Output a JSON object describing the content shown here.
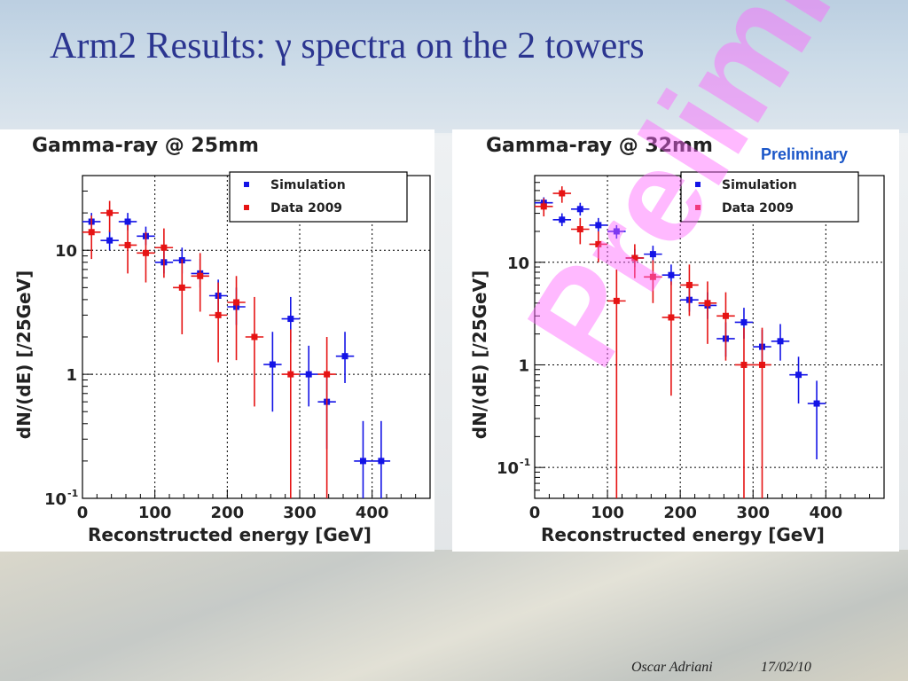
{
  "slide": {
    "title": "Arm2 Results: γ spectra on the 2 towers",
    "preliminary_label": "Preliminary",
    "watermark": "Preliminary",
    "author": "Oscar Adriani",
    "date": "17/02/10"
  },
  "colors": {
    "simulation": "#1414e6",
    "data": "#e61414",
    "title": "#2b3590"
  },
  "chart_data": [
    {
      "type": "scatter",
      "title": "Gamma-ray @ 25mm",
      "xlabel": "Reconstructed energy [GeV]",
      "ylabel": "dN/(dE) [/25GeV]",
      "xlim": [
        0,
        480
      ],
      "ylim": [
        0.1,
        40
      ],
      "yscale": "log",
      "grid": true,
      "legend_position": "top-right",
      "x_ticks": [
        {
          "v": 0,
          "label": "0"
        },
        {
          "v": 100,
          "label": "100"
        },
        {
          "v": 200,
          "label": "200"
        },
        {
          "v": 300,
          "label": "300"
        },
        {
          "v": 400,
          "label": "400"
        }
      ],
      "y_ticks": [
        {
          "v": 0.1,
          "label": "10",
          "exp": "-1"
        },
        {
          "v": 1,
          "label": "1",
          "exp": ""
        },
        {
          "v": 10,
          "label": "10",
          "exp": ""
        }
      ],
      "series": [
        {
          "name": "Simulation",
          "color": "#1414e6",
          "points": [
            {
              "x": 12.5,
              "y": 17,
              "lo": 14,
              "hi": 20
            },
            {
              "x": 37.5,
              "y": 12,
              "lo": 10,
              "hi": 14.5
            },
            {
              "x": 62.5,
              "y": 17,
              "lo": 14.5,
              "hi": 20
            },
            {
              "x": 87.5,
              "y": 13,
              "lo": 11,
              "hi": 15.5
            },
            {
              "x": 112.5,
              "y": 8,
              "lo": 6.5,
              "hi": 10
            },
            {
              "x": 137.5,
              "y": 8.3,
              "lo": 6.5,
              "hi": 10.5
            },
            {
              "x": 162.5,
              "y": 6.5,
              "lo": 5,
              "hi": 8.5
            },
            {
              "x": 187.5,
              "y": 4.3,
              "lo": 3.2,
              "hi": 5.8
            },
            {
              "x": 212.5,
              "y": 3.5,
              "lo": 2.5,
              "hi": 5
            },
            {
              "x": 262.5,
              "y": 1.2,
              "lo": 0.5,
              "hi": 2.2
            },
            {
              "x": 287.5,
              "y": 2.8,
              "lo": 1.8,
              "hi": 4.2
            },
            {
              "x": 312.5,
              "y": 1.0,
              "lo": 0.55,
              "hi": 1.7
            },
            {
              "x": 337.5,
              "y": 0.6,
              "lo": 0.25,
              "hi": 1.0
            },
            {
              "x": 362.5,
              "y": 1.4,
              "lo": 0.85,
              "hi": 2.2
            },
            {
              "x": 387.5,
              "y": 0.2,
              "lo": 0.1,
              "hi": 0.42
            },
            {
              "x": 412.5,
              "y": 0.2,
              "lo": 0.1,
              "hi": 0.42
            }
          ]
        },
        {
          "name": "Data 2009",
          "color": "#e61414",
          "points": [
            {
              "x": 12.5,
              "y": 14,
              "lo": 8.5,
              "hi": 19
            },
            {
              "x": 37.5,
              "y": 20,
              "lo": 14,
              "hi": 25
            },
            {
              "x": 62.5,
              "y": 11,
              "lo": 6.5,
              "hi": 16
            },
            {
              "x": 87.5,
              "y": 9.5,
              "lo": 5.5,
              "hi": 14
            },
            {
              "x": 112.5,
              "y": 10.5,
              "lo": 6,
              "hi": 15
            },
            {
              "x": 137.5,
              "y": 5,
              "lo": 2.1,
              "hi": 8.5
            },
            {
              "x": 162.5,
              "y": 6.2,
              "lo": 3.2,
              "hi": 9.5
            },
            {
              "x": 187.5,
              "y": 3.0,
              "lo": 1.25,
              "hi": 5.5
            },
            {
              "x": 212.5,
              "y": 3.8,
              "lo": 1.3,
              "hi": 6.2
            },
            {
              "x": 237.5,
              "y": 2.0,
              "lo": 0.55,
              "hi": 4.2
            },
            {
              "x": 287.5,
              "y": 1.0,
              "lo": 0.1,
              "hi": 2.3
            },
            {
              "x": 337.5,
              "y": 1.0,
              "lo": 0.1,
              "hi": 2.0
            }
          ]
        }
      ]
    },
    {
      "type": "scatter",
      "title": "Gamma-ray @ 32mm",
      "xlabel": "Reconstructed energy [GeV]",
      "ylabel": "dN/(dE) [/25GeV]",
      "xlim": [
        0,
        480
      ],
      "ylim": [
        0.05,
        70
      ],
      "yscale": "log",
      "grid": true,
      "legend_position": "top-right",
      "x_ticks": [
        {
          "v": 0,
          "label": "0"
        },
        {
          "v": 100,
          "label": "100"
        },
        {
          "v": 200,
          "label": "200"
        },
        {
          "v": 300,
          "label": "300"
        },
        {
          "v": 400,
          "label": "400"
        }
      ],
      "y_ticks": [
        {
          "v": 0.1,
          "label": "10",
          "exp": "-1"
        },
        {
          "v": 1,
          "label": "1",
          "exp": ""
        },
        {
          "v": 10,
          "label": "10",
          "exp": ""
        }
      ],
      "series": [
        {
          "name": "Simulation",
          "color": "#1414e6",
          "points": [
            {
              "x": 12.5,
              "y": 38,
              "lo": 33,
              "hi": 43
            },
            {
              "x": 37.5,
              "y": 26,
              "lo": 22.5,
              "hi": 30
            },
            {
              "x": 62.5,
              "y": 33,
              "lo": 28.5,
              "hi": 38
            },
            {
              "x": 87.5,
              "y": 23,
              "lo": 20,
              "hi": 27
            },
            {
              "x": 112.5,
              "y": 20,
              "lo": 17,
              "hi": 23
            },
            {
              "x": 137.5,
              "y": 11,
              "lo": 9,
              "hi": 13.5
            },
            {
              "x": 162.5,
              "y": 12,
              "lo": 10,
              "hi": 14.5
            },
            {
              "x": 187.5,
              "y": 7.5,
              "lo": 6,
              "hi": 9.5
            },
            {
              "x": 212.5,
              "y": 4.3,
              "lo": 3.3,
              "hi": 5.6
            },
            {
              "x": 237.5,
              "y": 3.8,
              "lo": 2.8,
              "hi": 5.1
            },
            {
              "x": 262.5,
              "y": 1.8,
              "lo": 1.2,
              "hi": 2.6
            },
            {
              "x": 287.5,
              "y": 2.6,
              "lo": 1.8,
              "hi": 3.6
            },
            {
              "x": 312.5,
              "y": 1.5,
              "lo": 0.95,
              "hi": 2.2
            },
            {
              "x": 337.5,
              "y": 1.7,
              "lo": 1.1,
              "hi": 2.5
            },
            {
              "x": 362.5,
              "y": 0.8,
              "lo": 0.42,
              "hi": 1.2
            },
            {
              "x": 387.5,
              "y": 0.42,
              "lo": 0.12,
              "hi": 0.7
            }
          ]
        },
        {
          "name": "Data 2009",
          "color": "#e61414",
          "points": [
            {
              "x": 12.5,
              "y": 35,
              "lo": 28,
              "hi": 42
            },
            {
              "x": 37.5,
              "y": 47,
              "lo": 38,
              "hi": 55
            },
            {
              "x": 62.5,
              "y": 21,
              "lo": 15,
              "hi": 27
            },
            {
              "x": 87.5,
              "y": 15,
              "lo": 10,
              "hi": 20
            },
            {
              "x": 112.5,
              "y": 4.2,
              "lo": 0.05,
              "hi": 8.5
            },
            {
              "x": 137.5,
              "y": 11,
              "lo": 7,
              "hi": 15
            },
            {
              "x": 162.5,
              "y": 7.2,
              "lo": 4,
              "hi": 10.5
            },
            {
              "x": 187.5,
              "y": 2.9,
              "lo": 0.5,
              "hi": 6.5
            },
            {
              "x": 212.5,
              "y": 6.0,
              "lo": 3,
              "hi": 9.5
            },
            {
              "x": 237.5,
              "y": 4.0,
              "lo": 1.6,
              "hi": 6.5
            },
            {
              "x": 262.5,
              "y": 3.0,
              "lo": 1.1,
              "hi": 5.1
            },
            {
              "x": 287.5,
              "y": 1.0,
              "lo": 0.05,
              "hi": 2.3
            },
            {
              "x": 312.5,
              "y": 1.0,
              "lo": 0.05,
              "hi": 2.3
            }
          ]
        }
      ]
    }
  ]
}
